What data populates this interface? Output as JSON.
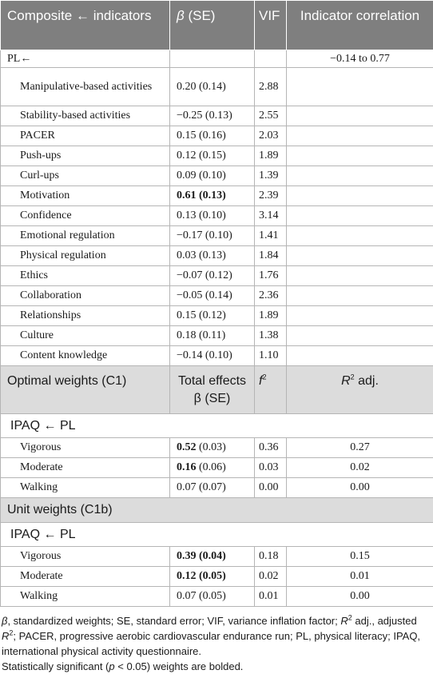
{
  "header": {
    "col1": "Composite ← indicators",
    "col2": {
      "symbol": "β",
      "text": " (SE)"
    },
    "col3": "VIF",
    "col4": "Indicator correlation"
  },
  "composite": {
    "label": "PL←",
    "correlation": "−0.14 to 0.77"
  },
  "indicators": [
    {
      "name": "Manipulative-based activities",
      "beta": "0.20",
      "se": "(0.14)",
      "bold": false,
      "vif": "2.88"
    },
    {
      "name": "Stability-based activities",
      "beta": "−0.25",
      "se": "(0.13)",
      "bold": false,
      "vif": "2.55"
    },
    {
      "name": "PACER",
      "beta": "0.15",
      "se": "(0.16)",
      "bold": false,
      "vif": "2.03"
    },
    {
      "name": "Push-ups",
      "beta": "0.12",
      "se": "(0.15)",
      "bold": false,
      "vif": "1.89"
    },
    {
      "name": "Curl-ups",
      "beta": "0.09",
      "se": "(0.10)",
      "bold": false,
      "vif": "1.39"
    },
    {
      "name": "Motivation",
      "beta": "0.61",
      "se": "(0.13)",
      "bold": true,
      "vif": "2.39"
    },
    {
      "name": "Confidence",
      "beta": "0.13",
      "se": "(0.10)",
      "bold": false,
      "vif": "3.14"
    },
    {
      "name": "Emotional regulation",
      "beta": "−0.17",
      "se": "(0.10)",
      "bold": false,
      "vif": "1.41"
    },
    {
      "name": "Physical regulation",
      "beta": "0.03",
      "se": "(0.13)",
      "bold": false,
      "vif": "1.84"
    },
    {
      "name": "Ethics",
      "beta": "−0.07",
      "se": "(0.12)",
      "bold": false,
      "vif": "1.76"
    },
    {
      "name": "Collaboration",
      "beta": "−0.05",
      "se": "(0.14)",
      "bold": false,
      "vif": "2.36"
    },
    {
      "name": "Relationships",
      "beta": "0.15",
      "se": "(0.12)",
      "bold": false,
      "vif": "1.89"
    },
    {
      "name": "Culture",
      "beta": "0.18",
      "se": "(0.11)",
      "bold": false,
      "vif": "1.38"
    },
    {
      "name": "Content knowledge",
      "beta": "−0.14",
      "se": "(0.10)",
      "bold": false,
      "vif": "1.10"
    }
  ],
  "sections": [
    {
      "title": "Optimal weights (C1)",
      "col2": [
        "Total effects",
        "β (SE)"
      ],
      "col3": {
        "symbol": "f",
        "sup": "2"
      },
      "col4": {
        "symbol": "R",
        "sup": "2",
        "text": " adj."
      },
      "subheader": "IPAQ ← PL",
      "rows": [
        {
          "name": "Vigorous",
          "beta": "0.52",
          "se": "(0.03)",
          "beta_bold": true,
          "se_bold": false,
          "f2": "0.36",
          "r2": "0.27"
        },
        {
          "name": "Moderate",
          "beta": "0.16",
          "se": "(0.06)",
          "beta_bold": true,
          "se_bold": false,
          "f2": "0.03",
          "r2": "0.02"
        },
        {
          "name": "Walking",
          "beta": "0.07",
          "se": "(0.07)",
          "beta_bold": false,
          "se_bold": false,
          "f2": "0.00",
          "r2": "0.00"
        }
      ]
    },
    {
      "title": "Unit weights (C1b)",
      "subheader": "IPAQ ← PL",
      "rows": [
        {
          "name": "Vigorous",
          "beta": "0.39",
          "se": "(0.04)",
          "beta_bold": true,
          "se_bold": true,
          "f2": "0.18",
          "r2": "0.15"
        },
        {
          "name": "Moderate",
          "beta": "0.12",
          "se": "(0.05)",
          "beta_bold": true,
          "se_bold": true,
          "f2": "0.02",
          "r2": "0.01"
        },
        {
          "name": "Walking",
          "beta": "0.07",
          "se": "(0.05)",
          "beta_bold": false,
          "se_bold": false,
          "f2": "0.01",
          "r2": "0.00"
        }
      ]
    }
  ],
  "footnote": {
    "paragraph": [
      {
        "text": "β",
        "italic": true
      },
      {
        "text": ", standardized weights; SE, standard error; VIF, variance inflation factor; "
      },
      {
        "text": "R",
        "italic": true
      },
      {
        "text": "2",
        "sup": true
      },
      {
        "text": " adj., adjusted "
      },
      {
        "text": "R",
        "italic": true
      },
      {
        "text": "2",
        "sup": true
      },
      {
        "text": "; PACER, progressive aerobic cardiovascular endurance run; PL, physical literacy; IPAQ, international physical activity questionnaire."
      }
    ],
    "note": [
      {
        "text": "Statistically significant ("
      },
      {
        "text": "p",
        "italic": true
      },
      {
        "text": " < 0.05) weights are bolded."
      }
    ]
  }
}
